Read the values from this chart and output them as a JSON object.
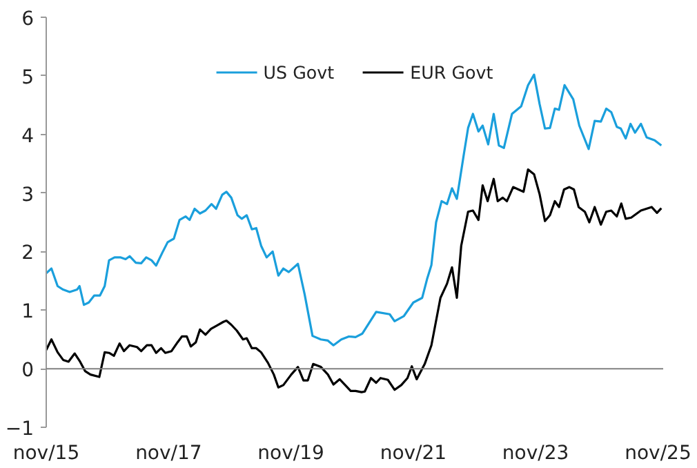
{
  "chart_data": {
    "type": "line",
    "xlim": [
      "2015-11-01",
      "2025-12-02"
    ],
    "xticks": [
      {
        "value": "2015-11-01",
        "label": "nov/15"
      },
      {
        "value": "2017-11-01",
        "label": "nov/17"
      },
      {
        "value": "2019-11-01",
        "label": "nov/19"
      },
      {
        "value": "2021-11-01",
        "label": "nov/21"
      },
      {
        "value": "2023-11-01",
        "label": "nov/23"
      },
      {
        "value": "2025-11-01",
        "label": "nov/25"
      }
    ],
    "ylim": [
      -1,
      6
    ],
    "yticks": [
      -1,
      0,
      1,
      2,
      3,
      4,
      5,
      6
    ],
    "grid": false,
    "legend": "top",
    "line_style": "solid",
    "ref_lines": [
      {
        "axis": "y",
        "value": 0,
        "color": "#808080"
      }
    ],
    "series": [
      {
        "name": "US Govt",
        "color": "#1a9fdc",
        "x": [
          "2015-11-01",
          "2015-12-02",
          "2016-01-08",
          "2016-02-10",
          "2016-03-20",
          "2016-05-03",
          "2016-05-18",
          "2016-06-13",
          "2016-07-12",
          "2016-08-14",
          "2016-09-17",
          "2016-10-15",
          "2016-11-10",
          "2016-12-13",
          "2017-01-19",
          "2017-02-17",
          "2017-03-13",
          "2017-04-19",
          "2017-05-21",
          "2017-06-20",
          "2017-07-22",
          "2017-08-18",
          "2017-09-24",
          "2017-10-26",
          "2017-12-02",
          "2018-01-05",
          "2018-02-10",
          "2018-03-06",
          "2018-04-05",
          "2018-05-07",
          "2018-06-09",
          "2018-07-15",
          "2018-08-11",
          "2018-09-17",
          "2018-10-12",
          "2018-11-10",
          "2018-12-17",
          "2019-01-12",
          "2019-02-10",
          "2019-03-13",
          "2019-04-08",
          "2019-05-07",
          "2019-06-09",
          "2019-07-15",
          "2019-08-18",
          "2019-09-17",
          "2019-10-19",
          "2019-12-13",
          "2020-01-22",
          "2020-03-09",
          "2020-04-28",
          "2020-06-09",
          "2020-07-12",
          "2020-08-28",
          "2020-10-12",
          "2020-11-21",
          "2021-01-01",
          "2021-03-24",
          "2021-06-13",
          "2021-07-12",
          "2021-09-06",
          "2021-11-01",
          "2021-12-24",
          "2022-01-22",
          "2022-02-17",
          "2022-03-17",
          "2022-04-19",
          "2022-05-21",
          "2022-06-20",
          "2022-07-19",
          "2022-08-28",
          "2022-09-24",
          "2022-10-23",
          "2022-11-25",
          "2022-12-20",
          "2023-01-22",
          "2023-02-24",
          "2023-03-27",
          "2023-04-26",
          "2023-06-13",
          "2023-08-07",
          "2023-09-17",
          "2023-10-23",
          "2023-11-25",
          "2023-12-27",
          "2024-01-26",
          "2024-02-24",
          "2024-03-20",
          "2024-04-22",
          "2024-06-13",
          "2024-07-19",
          "2024-09-13",
          "2024-10-19",
          "2024-11-25",
          "2024-12-27",
          "2025-01-26",
          "2025-02-28",
          "2025-03-24",
          "2025-04-22",
          "2025-05-21",
          "2025-06-17",
          "2025-07-22",
          "2025-08-25",
          "2025-10-12",
          "2025-11-21"
        ],
        "values": [
          1.63,
          1.71,
          1.41,
          1.35,
          1.31,
          1.35,
          1.41,
          1.09,
          1.13,
          1.25,
          1.25,
          1.41,
          1.85,
          1.9,
          1.9,
          1.87,
          1.92,
          1.81,
          1.8,
          1.9,
          1.85,
          1.76,
          1.98,
          2.16,
          2.22,
          2.54,
          2.6,
          2.54,
          2.73,
          2.65,
          2.7,
          2.81,
          2.73,
          2.97,
          3.02,
          2.92,
          2.62,
          2.56,
          2.62,
          2.38,
          2.4,
          2.1,
          1.9,
          2.0,
          1.59,
          1.71,
          1.65,
          1.79,
          1.27,
          0.56,
          0.5,
          0.48,
          0.4,
          0.5,
          0.55,
          0.54,
          0.6,
          0.97,
          0.93,
          0.81,
          0.9,
          1.13,
          1.21,
          1.53,
          1.77,
          2.5,
          2.86,
          2.81,
          3.08,
          2.9,
          3.63,
          4.11,
          4.35,
          4.05,
          4.15,
          3.83,
          4.35,
          3.81,
          3.77,
          4.35,
          4.48,
          4.84,
          5.02,
          4.52,
          4.1,
          4.11,
          4.44,
          4.42,
          4.84,
          4.6,
          4.15,
          3.75,
          4.23,
          4.22,
          4.44,
          4.38,
          4.13,
          4.1,
          3.93,
          4.18,
          4.03,
          4.18,
          3.95,
          3.9,
          3.81
        ]
      },
      {
        "name": "EUR Govt",
        "color": "#000000",
        "x": [
          "2015-11-01",
          "2015-12-02",
          "2016-01-08",
          "2016-02-10",
          "2016-03-13",
          "2016-04-19",
          "2016-05-21",
          "2016-06-20",
          "2016-07-22",
          "2016-09-13",
          "2016-10-15",
          "2016-11-10",
          "2016-12-09",
          "2017-01-12",
          "2017-02-07",
          "2017-03-13",
          "2017-04-26",
          "2017-05-21",
          "2017-06-24",
          "2017-07-22",
          "2017-08-18",
          "2017-09-17",
          "2017-10-12",
          "2017-11-18",
          "2017-12-24",
          "2018-01-19",
          "2018-02-17",
          "2018-03-13",
          "2018-04-12",
          "2018-05-07",
          "2018-06-09",
          "2018-07-12",
          "2018-08-18",
          "2018-09-24",
          "2018-10-12",
          "2018-11-10",
          "2018-12-13",
          "2019-01-19",
          "2019-02-10",
          "2019-03-13",
          "2019-04-08",
          "2019-05-07",
          "2019-06-17",
          "2019-07-22",
          "2019-08-18",
          "2019-09-17",
          "2019-11-03",
          "2019-12-13",
          "2020-01-15",
          "2020-02-10",
          "2020-03-13",
          "2020-04-28",
          "2020-06-09",
          "2020-07-12",
          "2020-08-18",
          "2020-09-27",
          "2020-10-23",
          "2020-11-21",
          "2020-12-27",
          "2021-01-15",
          "2021-02-21",
          "2021-03-24",
          "2021-04-19",
          "2021-06-02",
          "2021-07-12",
          "2021-08-21",
          "2021-09-27",
          "2021-10-23",
          "2021-11-21",
          "2022-01-08",
          "2022-02-17",
          "2022-04-12",
          "2022-05-21",
          "2022-06-20",
          "2022-07-19",
          "2022-08-14",
          "2022-09-24",
          "2022-10-23",
          "2022-11-25",
          "2022-12-20",
          "2023-01-19",
          "2023-02-24",
          "2023-03-20",
          "2023-04-19",
          "2023-05-14",
          "2023-06-20",
          "2023-07-22",
          "2023-08-21",
          "2023-09-17",
          "2023-10-23",
          "2023-11-25",
          "2023-12-27",
          "2024-01-26",
          "2024-02-24",
          "2024-03-20",
          "2024-04-19",
          "2024-05-21",
          "2024-06-17",
          "2024-07-15",
          "2024-08-21",
          "2024-09-17",
          "2024-10-19",
          "2024-11-25",
          "2024-12-27",
          "2025-01-26",
          "2025-02-28",
          "2025-03-27",
          "2025-04-22",
          "2025-05-25",
          "2025-07-22",
          "2025-09-24",
          "2025-10-26",
          "2025-11-21"
        ],
        "values": [
          0.32,
          0.5,
          0.28,
          0.15,
          0.12,
          0.26,
          0.12,
          -0.04,
          -0.1,
          -0.14,
          0.28,
          0.27,
          0.22,
          0.43,
          0.3,
          0.4,
          0.37,
          0.3,
          0.4,
          0.4,
          0.27,
          0.35,
          0.27,
          0.3,
          0.45,
          0.55,
          0.55,
          0.38,
          0.45,
          0.67,
          0.58,
          0.68,
          0.74,
          0.8,
          0.82,
          0.75,
          0.65,
          0.5,
          0.52,
          0.35,
          0.35,
          0.28,
          0.1,
          -0.1,
          -0.32,
          -0.28,
          -0.1,
          0.03,
          -0.2,
          -0.2,
          0.08,
          0.03,
          -0.1,
          -0.27,
          -0.18,
          -0.3,
          -0.38,
          -0.38,
          -0.4,
          -0.39,
          -0.16,
          -0.24,
          -0.16,
          -0.19,
          -0.36,
          -0.28,
          -0.16,
          0.04,
          -0.18,
          0.08,
          0.4,
          1.21,
          1.45,
          1.73,
          1.21,
          2.1,
          2.68,
          2.7,
          2.54,
          3.13,
          2.86,
          3.24,
          2.86,
          2.92,
          2.86,
          3.1,
          3.06,
          3.02,
          3.4,
          3.32,
          2.98,
          2.52,
          2.62,
          2.86,
          2.76,
          3.06,
          3.1,
          3.06,
          2.76,
          2.68,
          2.5,
          2.76,
          2.46,
          2.68,
          2.7,
          2.6,
          2.82,
          2.56,
          2.58,
          2.7,
          2.76,
          2.66,
          2.74
        ]
      }
    ]
  }
}
